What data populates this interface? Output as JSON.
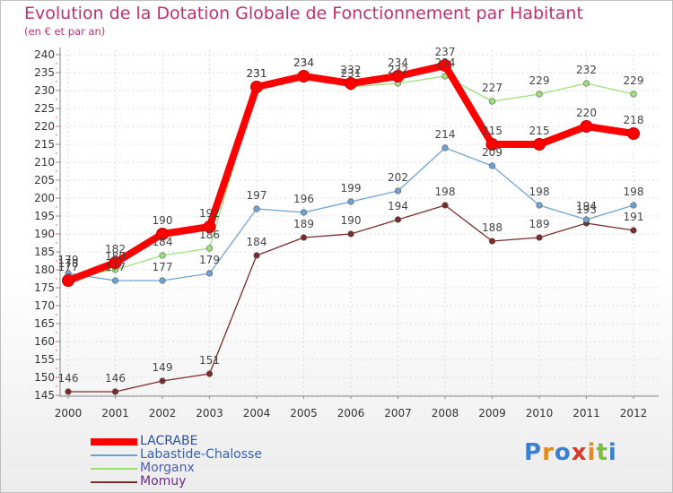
{
  "chart_data": {
    "type": "line",
    "title": "Evolution de la Dotation Globale de Fonctionnement par Habitant",
    "subtitle": "(en € et par an)",
    "x": [
      "2000",
      "2001",
      "2002",
      "2003",
      "2004",
      "2005",
      "2006",
      "2007",
      "2008",
      "2009",
      "2010",
      "2011",
      "2012"
    ],
    "ylim": [
      145,
      240
    ],
    "yticks": [
      145,
      150,
      155,
      160,
      165,
      170,
      175,
      180,
      185,
      190,
      195,
      200,
      205,
      210,
      215,
      220,
      225,
      230,
      235,
      240
    ],
    "series": [
      {
        "name": "LACRABE",
        "color": "#ff0000",
        "values": [
          177,
          182,
          190,
          192,
          231,
          234,
          232,
          234,
          237,
          215,
          215,
          220,
          218
        ]
      },
      {
        "name": "Labastide-Chalosse",
        "color": "#6fa3d3",
        "values": [
          179,
          177,
          177,
          179,
          197,
          196,
          199,
          202,
          214,
          209,
          198,
          194,
          198
        ]
      },
      {
        "name": "Morganx",
        "color": "#9ce07a",
        "values": [
          178,
          180,
          184,
          186,
          231,
          234,
          231,
          232,
          234,
          227,
          229,
          232,
          229
        ]
      },
      {
        "name": "Momuy",
        "color": "#7b2b2b",
        "values": [
          146,
          146,
          149,
          151,
          184,
          189,
          190,
          194,
          198,
          188,
          189,
          193,
          191
        ]
      }
    ]
  },
  "logo": {
    "letters": [
      "P",
      "r",
      "o",
      "x",
      "i",
      "t",
      "i"
    ],
    "colors": [
      "#3a7fd0",
      "#e58a1f",
      "#3a7fd0",
      "#d63a2b",
      "#e58a1f",
      "#7abf3a",
      "#3a7fd0"
    ]
  }
}
